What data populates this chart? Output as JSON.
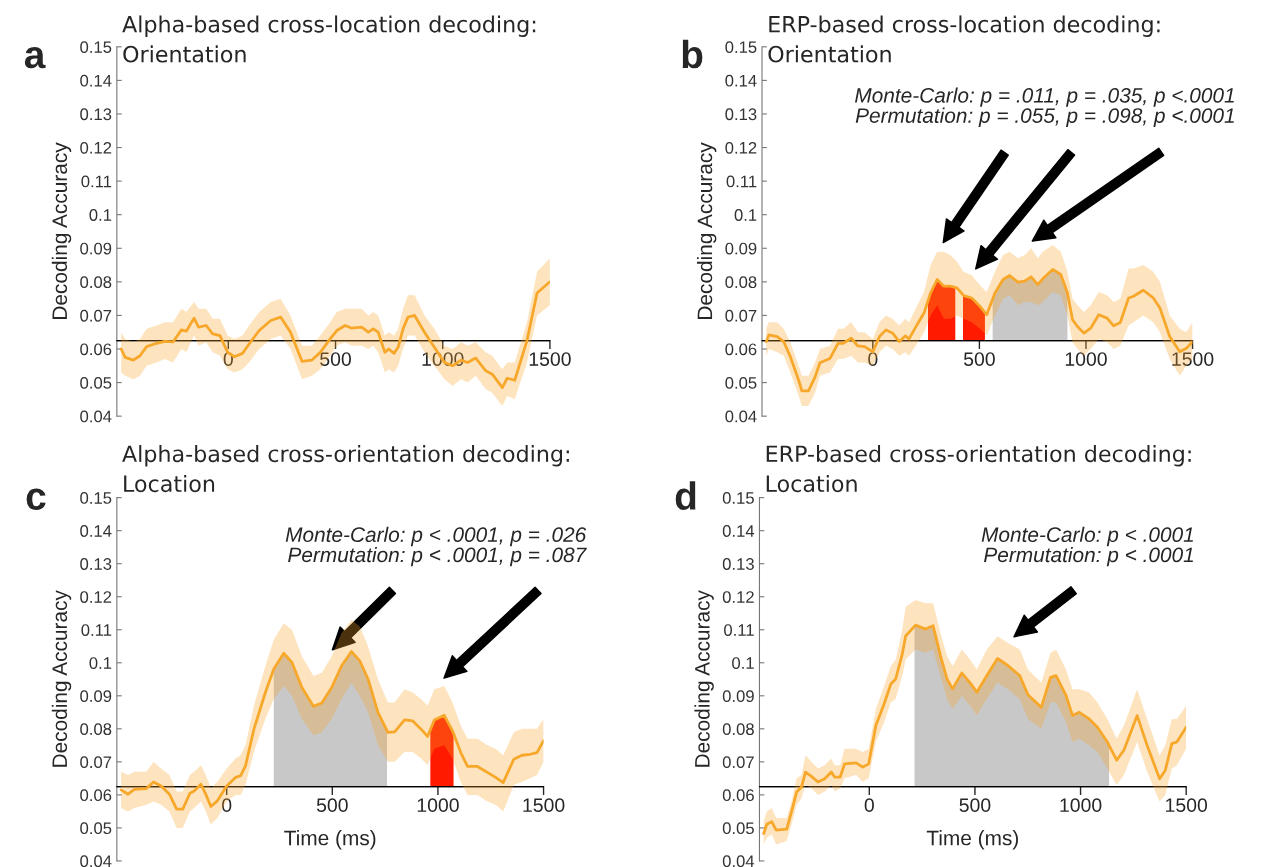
{
  "chart_data": [
    {
      "type": "line",
      "title": "Alpha-based cross-location decoding:\nOrientation",
      "ylabel": "Decoding Accuracy",
      "annotations": [
        "a"
      ],
      "xlim": [
        -520,
        1500
      ],
      "xticks": [
        0,
        500,
        1000,
        1500
      ],
      "ylim": [
        0.04,
        0.15
      ],
      "yticks": [
        0.04,
        0.05,
        0.06,
        0.07,
        0.08,
        0.09,
        0.1,
        0.11,
        0.12,
        0.13,
        0.14,
        0.15
      ],
      "ref_lines": [
        {
          "axis": "y",
          "value": 0.0625,
          "color": "#000000"
        }
      ],
      "series": [
        {
          "color": "#f7a72a",
          "x": [
            -500,
            -481,
            -443,
            -412,
            -381,
            -335,
            -296,
            -258,
            -219,
            -196,
            -160,
            -139,
            -103,
            -73,
            -39,
            -3,
            28,
            66,
            97,
            144,
            198,
            244,
            290,
            344,
            390,
            429,
            475,
            506,
            545,
            576,
            622,
            653,
            676,
            699,
            730,
            748,
            773,
            792,
            815,
            838,
            869,
            915,
            961,
            1008,
            1046,
            1085,
            1116,
            1154,
            1201,
            1231,
            1278,
            1301,
            1336,
            1393,
            1440,
            1500
          ],
          "values": [
            0.06,
            0.0575,
            0.0567,
            0.058,
            0.0607,
            0.0617,
            0.0623,
            0.0621,
            0.0657,
            0.0653,
            0.0692,
            0.0665,
            0.067,
            0.0645,
            0.064,
            0.059,
            0.0577,
            0.0587,
            0.0615,
            0.0655,
            0.0685,
            0.0695,
            0.065,
            0.0563,
            0.0567,
            0.059,
            0.063,
            0.0655,
            0.067,
            0.0662,
            0.0665,
            0.065,
            0.066,
            0.065,
            0.059,
            0.06,
            0.0587,
            0.0605,
            0.066,
            0.0695,
            0.07,
            0.065,
            0.0605,
            0.056,
            0.055,
            0.0567,
            0.056,
            0.0573,
            0.0535,
            0.0525,
            0.0485,
            0.0513,
            0.0507,
            0.0625,
            0.0767,
            0.08
          ],
          "upper": [
            0.065,
            0.063,
            0.062,
            0.063,
            0.066,
            0.067,
            0.068,
            0.068,
            0.072,
            0.071,
            0.074,
            0.072,
            0.072,
            0.069,
            0.069,
            0.064,
            0.063,
            0.064,
            0.067,
            0.071,
            0.074,
            0.075,
            0.07,
            0.061,
            0.061,
            0.064,
            0.068,
            0.071,
            0.072,
            0.072,
            0.072,
            0.07,
            0.071,
            0.07,
            0.064,
            0.065,
            0.064,
            0.066,
            0.072,
            0.076,
            0.076,
            0.07,
            0.066,
            0.061,
            0.06,
            0.062,
            0.061,
            0.062,
            0.059,
            0.058,
            0.054,
            0.056,
            0.056,
            0.068,
            0.083,
            0.087
          ],
          "lower": [
            0.053,
            0.052,
            0.051,
            0.052,
            0.055,
            0.056,
            0.057,
            0.056,
            0.06,
            0.059,
            0.064,
            0.061,
            0.062,
            0.059,
            0.058,
            0.054,
            0.053,
            0.054,
            0.056,
            0.06,
            0.063,
            0.064,
            0.06,
            0.051,
            0.052,
            0.054,
            0.058,
            0.061,
            0.062,
            0.061,
            0.061,
            0.06,
            0.061,
            0.059,
            0.053,
            0.054,
            0.053,
            0.055,
            0.06,
            0.064,
            0.064,
            0.059,
            0.055,
            0.051,
            0.049,
            0.051,
            0.05,
            0.052,
            0.048,
            0.047,
            0.043,
            0.046,
            0.045,
            0.056,
            0.07,
            0.073
          ]
        }
      ]
    },
    {
      "type": "line",
      "title": "ERP-based cross-location decoding:\nOrientation",
      "ylabel": "Decoding Accuracy",
      "annotations": [
        "b",
        "Monte-Carlo: p = .011, p = .035, p <.0001\nPermutation: p = .055, p = .098, p <.0001"
      ],
      "xlim": [
        -520,
        1500
      ],
      "xticks": [
        0,
        500,
        1000,
        1500
      ],
      "ylim": [
        0.04,
        0.15
      ],
      "yticks": [
        0.04,
        0.05,
        0.06,
        0.07,
        0.08,
        0.09,
        0.1,
        0.11,
        0.12,
        0.13,
        0.14,
        0.15
      ],
      "ref_lines": [
        {
          "axis": "y",
          "value": 0.0625,
          "color": "#000000"
        }
      ],
      "series": [
        {
          "type": "area",
          "color": "#ff1a00",
          "x": [
            259,
            271,
            302,
            333,
            364,
            387
          ],
          "values": [
            0.0752,
            0.0767,
            0.0807,
            0.0787,
            0.0787,
            0.0783
          ]
        },
        {
          "type": "area",
          "color": "#ff1a00",
          "x": [
            423,
            426,
            464,
            503,
            526
          ],
          "values": [
            0.076,
            0.0759,
            0.0752,
            0.0727,
            0.0708
          ]
        },
        {
          "type": "area",
          "color": "#c8c8c8",
          "x": [
            562,
            573,
            611,
            642,
            681,
            712,
            743,
            774,
            797,
            844,
            882,
            913
          ],
          "values": [
            0.0749,
            0.0767,
            0.0807,
            0.0819,
            0.0799,
            0.0802,
            0.0815,
            0.0792,
            0.0809,
            0.0837,
            0.0822,
            0.0767
          ]
        },
        {
          "color": "#f7a72a",
          "x": [
            -500,
            -488,
            -449,
            -418,
            -387,
            -348,
            -333,
            -302,
            -271,
            -248,
            -201,
            -163,
            -139,
            -101,
            -70,
            -39,
            0,
            31,
            62,
            93,
            124,
            152,
            170,
            201,
            240,
            271,
            302,
            333,
            364,
            395,
            426,
            464,
            503,
            534,
            573,
            611,
            642,
            681,
            712,
            743,
            774,
            797,
            844,
            882,
            913,
            937,
            960,
            991,
            1022,
            1060,
            1099,
            1130,
            1161,
            1200,
            1223,
            1269,
            1316,
            1347,
            1393,
            1440,
            1471,
            1500
          ],
          "values": [
            0.0622,
            0.0642,
            0.0637,
            0.0622,
            0.0577,
            0.0507,
            0.0475,
            0.0475,
            0.0517,
            0.0559,
            0.0572,
            0.0617,
            0.0617,
            0.0632,
            0.0609,
            0.0607,
            0.0592,
            0.0637,
            0.0657,
            0.0647,
            0.0622,
            0.0639,
            0.063,
            0.0665,
            0.0707,
            0.0767,
            0.0807,
            0.0787,
            0.0787,
            0.0782,
            0.0759,
            0.0752,
            0.0727,
            0.0702,
            0.0767,
            0.0807,
            0.0819,
            0.0799,
            0.0802,
            0.0815,
            0.0792,
            0.0809,
            0.0837,
            0.0822,
            0.0767,
            0.0687,
            0.0667,
            0.0647,
            0.0662,
            0.0702,
            0.0692,
            0.0669,
            0.0679,
            0.0752,
            0.0757,
            0.0775,
            0.0752,
            0.0722,
            0.0637,
            0.0592,
            0.0602,
            0.0622
          ],
          "upper": [
            0.066,
            0.068,
            0.068,
            0.066,
            0.062,
            0.055,
            0.052,
            0.052,
            0.056,
            0.06,
            0.061,
            0.066,
            0.066,
            0.068,
            0.065,
            0.065,
            0.063,
            0.068,
            0.07,
            0.069,
            0.067,
            0.069,
            0.068,
            0.072,
            0.077,
            0.085,
            0.089,
            0.089,
            0.088,
            0.086,
            0.083,
            0.082,
            0.079,
            0.077,
            0.083,
            0.088,
            0.089,
            0.087,
            0.088,
            0.09,
            0.087,
            0.089,
            0.091,
            0.089,
            0.083,
            0.075,
            0.073,
            0.071,
            0.073,
            0.077,
            0.076,
            0.074,
            0.075,
            0.084,
            0.084,
            0.085,
            0.083,
            0.08,
            0.07,
            0.066,
            0.065,
            0.068
          ],
          "lower": [
            0.058,
            0.06,
            0.059,
            0.058,
            0.053,
            0.046,
            0.043,
            0.043,
            0.047,
            0.052,
            0.053,
            0.057,
            0.057,
            0.058,
            0.056,
            0.056,
            0.055,
            0.059,
            0.061,
            0.06,
            0.058,
            0.059,
            0.058,
            0.061,
            0.065,
            0.07,
            0.073,
            0.069,
            0.069,
            0.07,
            0.069,
            0.068,
            0.066,
            0.064,
            0.07,
            0.075,
            0.076,
            0.073,
            0.074,
            0.074,
            0.073,
            0.074,
            0.077,
            0.076,
            0.07,
            0.062,
            0.06,
            0.058,
            0.06,
            0.063,
            0.062,
            0.06,
            0.061,
            0.067,
            0.068,
            0.07,
            0.068,
            0.065,
            0.057,
            0.052,
            0.055,
            0.057
          ]
        }
      ]
    },
    {
      "type": "line",
      "title": "Alpha-based cross-orientation decoding:\nLocation",
      "ylabel": "Decoding Accuracy",
      "xlabel": "Time (ms)",
      "annotations": [
        "c",
        "Monte-Carlo: p < .0001, p = .026\nPermutation: p < .0001, p = .087"
      ],
      "xlim": [
        -520,
        1500
      ],
      "xticks": [
        0,
        500,
        1000,
        1500
      ],
      "ylim": [
        0.04,
        0.15
      ],
      "yticks": [
        0.04,
        0.05,
        0.06,
        0.07,
        0.08,
        0.09,
        0.1,
        0.11,
        0.12,
        0.13,
        0.14,
        0.15
      ],
      "ref_lines": [
        {
          "axis": "y",
          "value": 0.0625,
          "color": "#000000"
        }
      ],
      "series": [
        {
          "type": "area",
          "color": "#c8c8c8",
          "x": [
            223,
            270,
            309,
            356,
            411,
            450,
            497,
            544,
            591,
            630,
            669,
            716,
            759
          ],
          "values": [
            0.0981,
            0.1029,
            0.1001,
            0.0925,
            0.0868,
            0.0878,
            0.0925,
            0.0991,
            0.1034,
            0.1006,
            0.0951,
            0.085,
            0.0795
          ]
        },
        {
          "type": "area",
          "color": "#ff1a00",
          "x": [
            964,
            983,
            1030,
            1069,
            1074
          ],
          "values": [
            0.0799,
            0.0827,
            0.0841,
            0.0794,
            0.0786
          ]
        },
        {
          "color": "#f7a72a",
          "x": [
            -500,
            -467,
            -436,
            -381,
            -346,
            -310,
            -271,
            -237,
            -208,
            -174,
            -154,
            -122,
            -99,
            -75,
            -44,
            0,
            42,
            66,
            89,
            129,
            183,
            223,
            270,
            309,
            356,
            411,
            450,
            497,
            544,
            591,
            630,
            669,
            716,
            763,
            795,
            842,
            881,
            920,
            951,
            983,
            1030,
            1069,
            1108,
            1140,
            1187,
            1234,
            1273,
            1309,
            1359,
            1398,
            1437,
            1469,
            1500
          ],
          "values": [
            0.0615,
            0.0602,
            0.0617,
            0.0619,
            0.0639,
            0.0627,
            0.0602,
            0.0557,
            0.0557,
            0.0605,
            0.0612,
            0.0632,
            0.0602,
            0.0565,
            0.0582,
            0.0627,
            0.0653,
            0.0658,
            0.0688,
            0.0799,
            0.091,
            0.0981,
            0.1029,
            0.1001,
            0.0925,
            0.0868,
            0.0878,
            0.0925,
            0.0991,
            0.1034,
            0.1006,
            0.0951,
            0.085,
            0.0789,
            0.0791,
            0.0827,
            0.0824,
            0.0799,
            0.0777,
            0.0827,
            0.0841,
            0.0794,
            0.0728,
            0.0686,
            0.0686,
            0.0668,
            0.0653,
            0.0637,
            0.0708,
            0.072,
            0.0723,
            0.0728,
            0.0764
          ],
          "upper": [
            0.067,
            0.066,
            0.067,
            0.067,
            0.07,
            0.068,
            0.066,
            0.061,
            0.061,
            0.066,
            0.067,
            0.069,
            0.066,
            0.062,
            0.064,
            0.068,
            0.071,
            0.072,
            0.075,
            0.087,
            0.099,
            0.107,
            0.112,
            0.11,
            0.102,
            0.096,
            0.097,
            0.102,
            0.109,
            0.113,
            0.111,
            0.105,
            0.095,
            0.088,
            0.088,
            0.092,
            0.091,
            0.089,
            0.087,
            0.092,
            0.093,
            0.088,
            0.081,
            0.077,
            0.077,
            0.075,
            0.074,
            0.072,
            0.079,
            0.08,
            0.08,
            0.08,
            0.083
          ],
          "lower": [
            0.056,
            0.055,
            0.056,
            0.057,
            0.058,
            0.057,
            0.055,
            0.05,
            0.05,
            0.055,
            0.056,
            0.058,
            0.055,
            0.051,
            0.053,
            0.058,
            0.06,
            0.06,
            0.063,
            0.073,
            0.083,
            0.089,
            0.093,
            0.09,
            0.083,
            0.078,
            0.079,
            0.083,
            0.089,
            0.094,
            0.09,
            0.085,
            0.075,
            0.07,
            0.07,
            0.073,
            0.073,
            0.071,
            0.069,
            0.074,
            0.075,
            0.071,
            0.064,
            0.06,
            0.06,
            0.058,
            0.057,
            0.055,
            0.063,
            0.064,
            0.065,
            0.066,
            0.07
          ]
        }
      ]
    },
    {
      "type": "line",
      "title": "ERP-based cross-orientation decoding:\nLocation",
      "ylabel": "Decoding Accuracy",
      "xlabel": "Time (ms)",
      "annotations": [
        "d",
        "Monte-Carlo: p < .0001\nPermutation: p < .0001"
      ],
      "xlim": [
        -520,
        1500
      ],
      "xticks": [
        0,
        500,
        1000,
        1500
      ],
      "ylim": [
        0.04,
        0.15
      ],
      "yticks": [
        0.04,
        0.05,
        0.06,
        0.07,
        0.08,
        0.09,
        0.1,
        0.11,
        0.12,
        0.13,
        0.14,
        0.15
      ],
      "ref_lines": [
        {
          "axis": "y",
          "value": 0.0625,
          "color": "#000000"
        }
      ],
      "series": [
        {
          "type": "area",
          "color": "#c8c8c8",
          "x": [
            214,
            219,
            266,
            302,
            337,
            368,
            394,
            438,
            477,
            509,
            556,
            607,
            657,
            712,
            751,
            814,
            858,
            884,
            931,
            962,
            994,
            1041,
            1080,
            1127,
            1135
          ],
          "values": [
            0.111,
            0.1114,
            0.1102,
            0.1112,
            0.1021,
            0.0951,
            0.0921,
            0.0969,
            0.0939,
            0.0911,
            0.0961,
            0.1013,
            0.0991,
            0.0961,
            0.0903,
            0.0865,
            0.0956,
            0.0961,
            0.0901,
            0.084,
            0.085,
            0.083,
            0.0805,
            0.076,
            0.0752
          ]
        },
        {
          "color": "#f7a72a",
          "x": [
            -500,
            -485,
            -462,
            -441,
            -391,
            -368,
            -344,
            -321,
            -302,
            -274,
            -243,
            -211,
            -180,
            -164,
            -138,
            -117,
            -63,
            -31,
            -3,
            31,
            70,
            102,
            125,
            156,
            172,
            219,
            266,
            302,
            337,
            368,
            394,
            438,
            477,
            509,
            556,
            607,
            657,
            712,
            751,
            814,
            858,
            884,
            931,
            962,
            994,
            1041,
            1080,
            1127,
            1171,
            1205,
            1268,
            1315,
            1374,
            1401,
            1432,
            1456,
            1500
          ],
          "values": [
            0.0483,
            0.0511,
            0.0519,
            0.0493,
            0.0496,
            0.0549,
            0.0609,
            0.0624,
            0.0669,
            0.0656,
            0.0639,
            0.0649,
            0.0669,
            0.0654,
            0.0654,
            0.0694,
            0.0697,
            0.0684,
            0.0694,
            0.081,
            0.0875,
            0.0936,
            0.0951,
            0.1026,
            0.1081,
            0.1114,
            0.1102,
            0.1112,
            0.1021,
            0.0951,
            0.0921,
            0.0969,
            0.0939,
            0.0911,
            0.0961,
            0.1013,
            0.0991,
            0.0961,
            0.0903,
            0.0865,
            0.0956,
            0.0961,
            0.0901,
            0.084,
            0.085,
            0.083,
            0.0805,
            0.076,
            0.0705,
            0.0735,
            0.084,
            0.075,
            0.0649,
            0.0674,
            0.0755,
            0.076,
            0.0805
          ],
          "upper": [
            0.052,
            0.055,
            0.056,
            0.053,
            0.053,
            0.058,
            0.065,
            0.066,
            0.072,
            0.07,
            0.068,
            0.069,
            0.071,
            0.069,
            0.069,
            0.074,
            0.074,
            0.073,
            0.074,
            0.086,
            0.093,
            0.099,
            0.101,
            0.11,
            0.117,
            0.119,
            0.118,
            0.118,
            0.109,
            0.102,
            0.099,
            0.104,
            0.101,
            0.098,
            0.104,
            0.108,
            0.106,
            0.104,
            0.098,
            0.094,
            0.103,
            0.104,
            0.098,
            0.092,
            0.092,
            0.091,
            0.088,
            0.083,
            0.077,
            0.081,
            0.092,
            0.083,
            0.072,
            0.075,
            0.083,
            0.083,
            0.087
          ],
          "lower": [
            0.045,
            0.047,
            0.048,
            0.045,
            0.046,
            0.051,
            0.057,
            0.059,
            0.063,
            0.062,
            0.06,
            0.061,
            0.063,
            0.061,
            0.062,
            0.065,
            0.066,
            0.064,
            0.065,
            0.076,
            0.082,
            0.088,
            0.089,
            0.096,
            0.101,
            0.104,
            0.103,
            0.104,
            0.096,
            0.089,
            0.086,
            0.09,
            0.087,
            0.084,
            0.089,
            0.094,
            0.092,
            0.089,
            0.083,
            0.08,
            0.088,
            0.088,
            0.082,
            0.076,
            0.077,
            0.075,
            0.073,
            0.068,
            0.063,
            0.066,
            0.076,
            0.067,
            0.058,
            0.06,
            0.068,
            0.069,
            0.074
          ]
        }
      ]
    }
  ]
}
